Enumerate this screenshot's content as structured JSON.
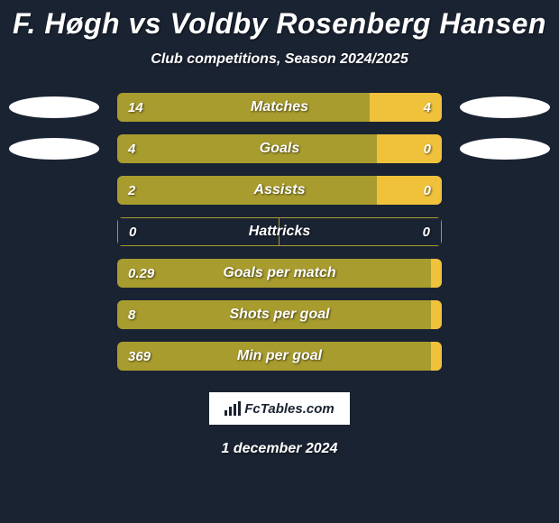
{
  "title": "F. Høgh vs Voldby Rosenberg Hansen",
  "subtitle": "Club competitions, Season 2024/2025",
  "date": "1 december 2024",
  "footer_brand": "FcTables.com",
  "colors": {
    "background": "#1a2332",
    "left_bar": "#a89c2e",
    "right_bar": "#f0c23c",
    "text": "#ffffff",
    "placeholder": "#ffffff"
  },
  "stats": [
    {
      "label": "Matches",
      "left_val": "14",
      "right_val": "4",
      "left_pct": 77.8,
      "right_pct": 22.2,
      "show_placeholders": true
    },
    {
      "label": "Goals",
      "left_val": "4",
      "right_val": "0",
      "left_pct": 80,
      "right_pct": 20,
      "show_placeholders": true
    },
    {
      "label": "Assists",
      "left_val": "2",
      "right_val": "0",
      "left_pct": 80,
      "right_pct": 20,
      "show_placeholders": false
    },
    {
      "label": "Hattricks",
      "left_val": "0",
      "right_val": "0",
      "left_pct": 50,
      "right_pct": 50,
      "neutral": true,
      "show_placeholders": false
    },
    {
      "label": "Goals per match",
      "left_val": "0.29",
      "right_val": "",
      "left_pct": 100,
      "right_pct": 0,
      "show_placeholders": false
    },
    {
      "label": "Shots per goal",
      "left_val": "8",
      "right_val": "",
      "left_pct": 100,
      "right_pct": 0,
      "show_placeholders": false
    },
    {
      "label": "Min per goal",
      "left_val": "369",
      "right_val": "",
      "left_pct": 100,
      "right_pct": 0,
      "show_placeholders": false
    }
  ]
}
